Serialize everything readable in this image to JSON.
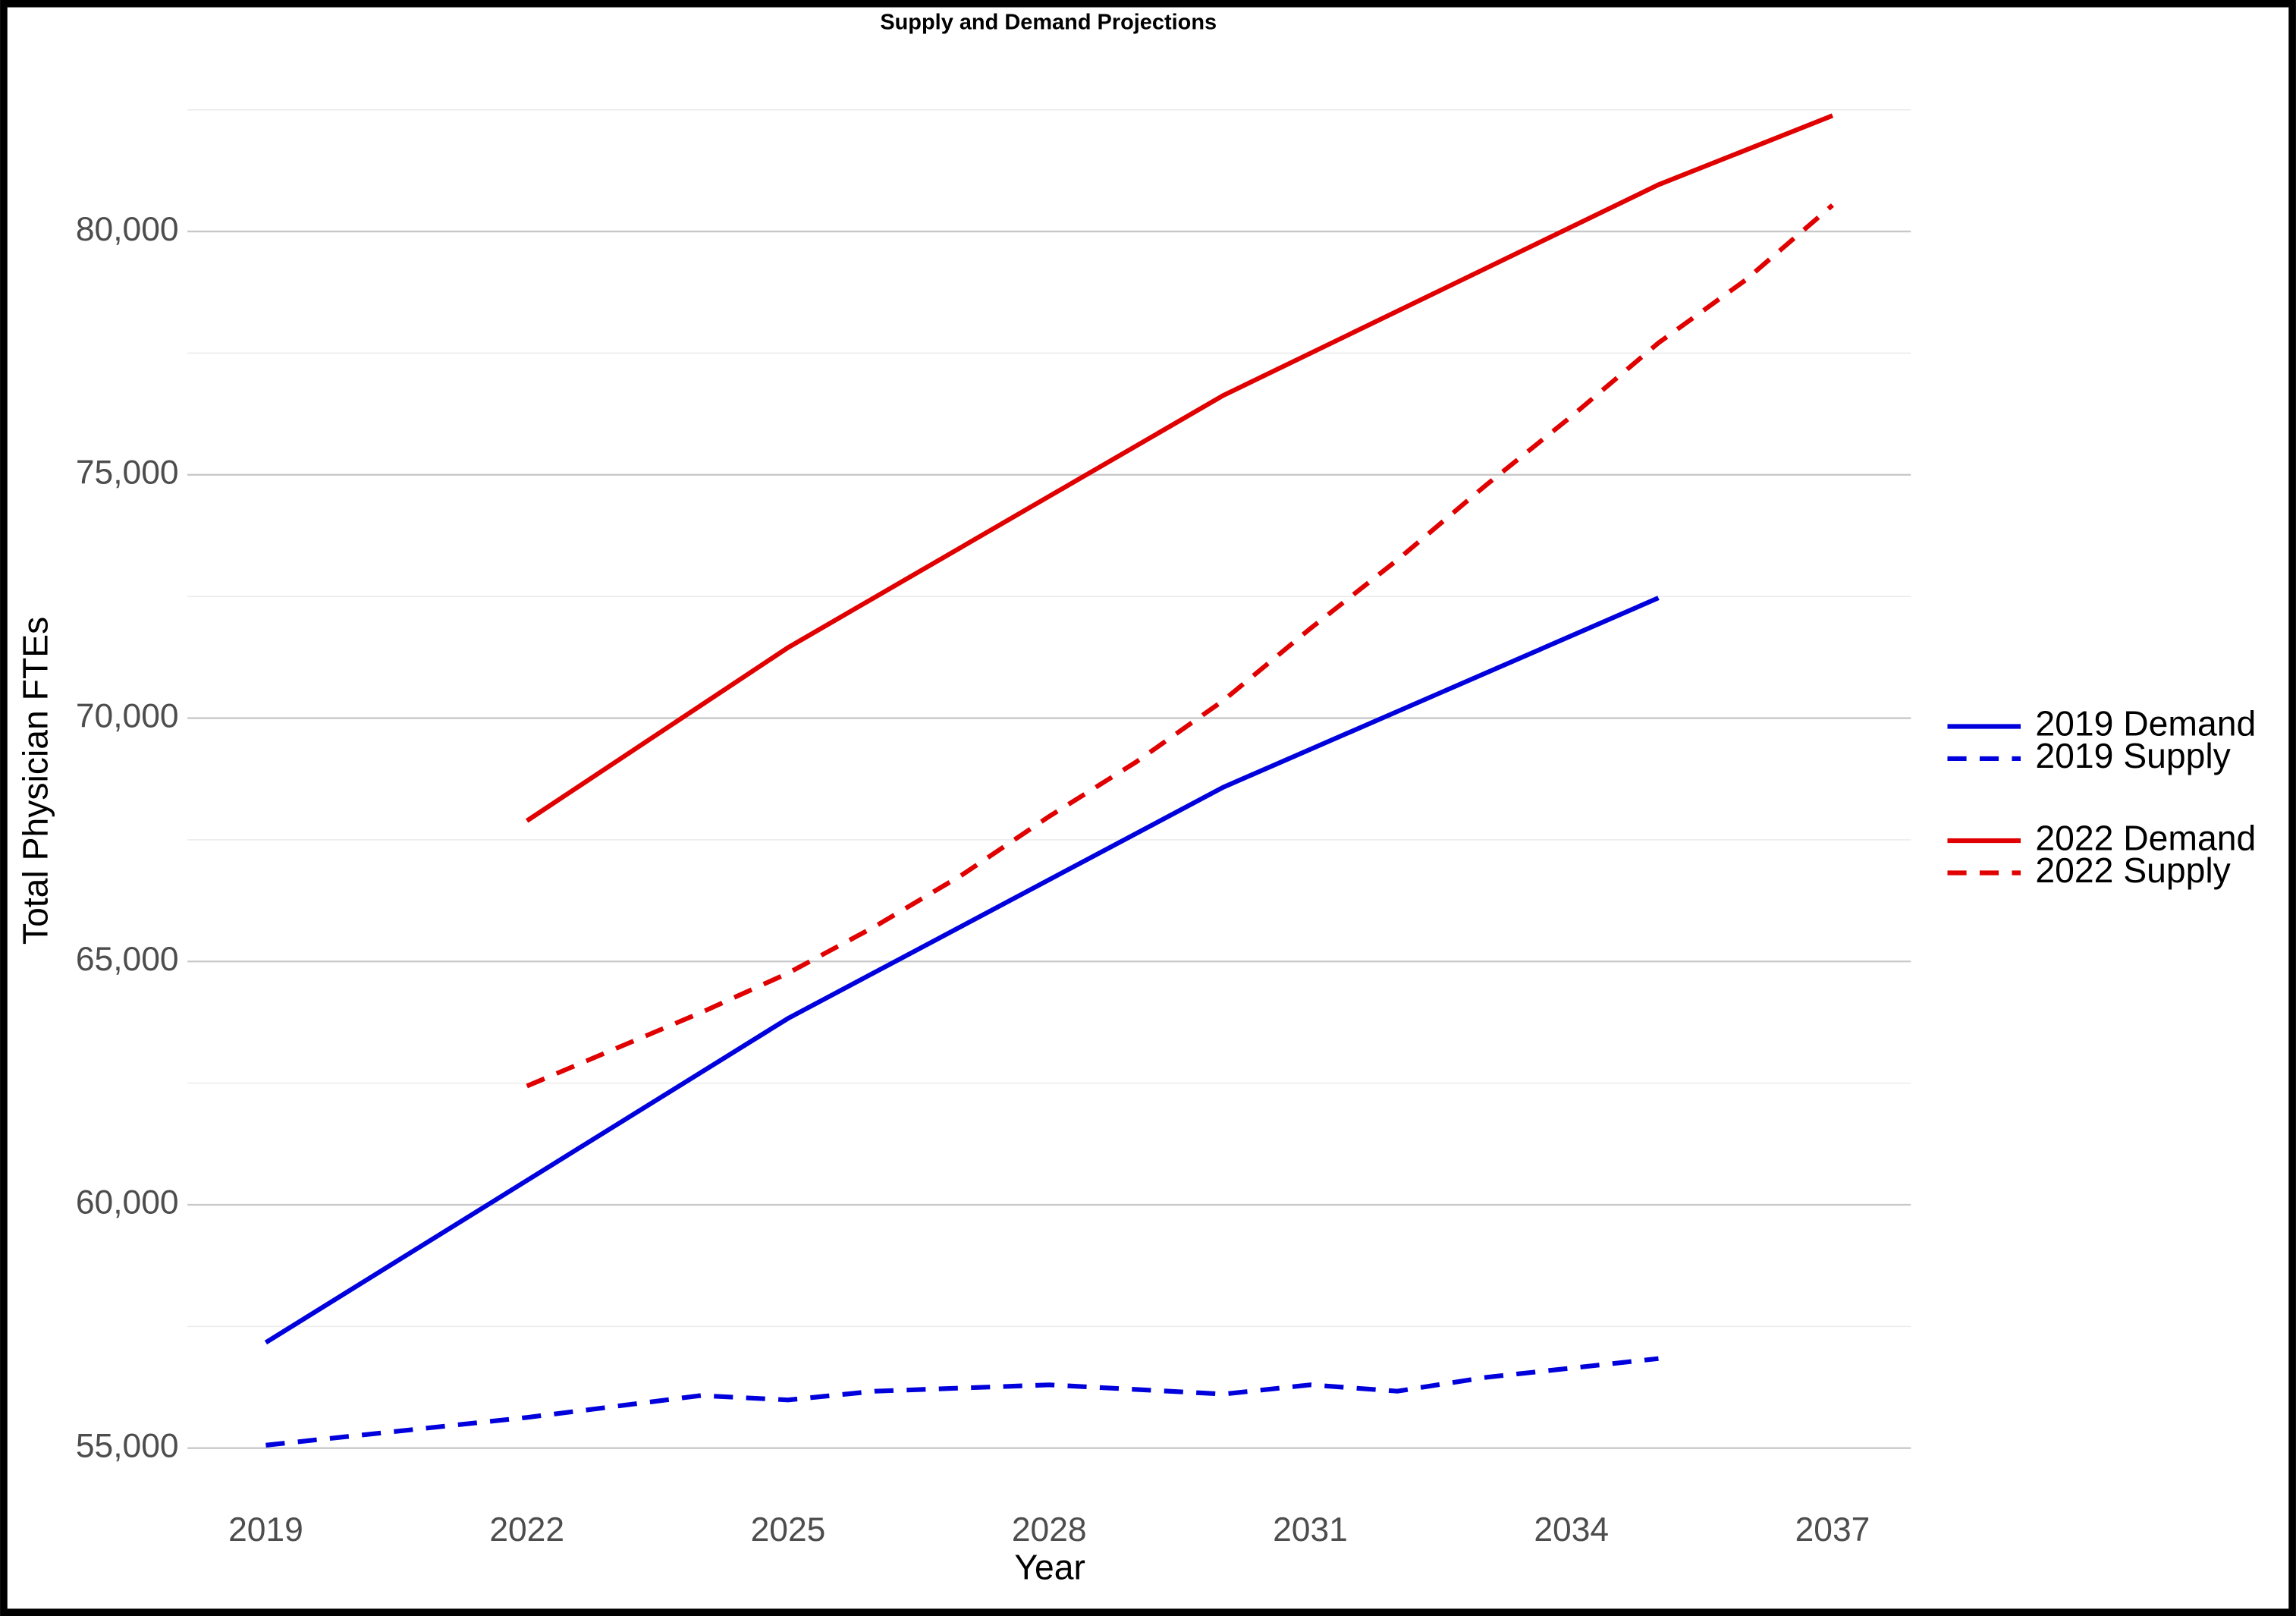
{
  "chart_data": {
    "type": "line",
    "title": "Supply and Demand Projections",
    "x_label": "Year",
    "y_label": "Total Physician FTEs",
    "xlim": [
      2018.1,
      2037.9
    ],
    "xticks": [
      2019,
      2022,
      2025,
      2028,
      2031,
      2034,
      2037
    ],
    "ylim": [
      54000,
      82800
    ],
    "yticks": [
      {
        "value": 55000,
        "label": "55,000"
      },
      {
        "value": 60000,
        "label": "60,000"
      },
      {
        "value": 65000,
        "label": "65,000"
      },
      {
        "value": 70000,
        "label": "70,000"
      },
      {
        "value": 75000,
        "label": "75,000"
      },
      {
        "value": 80000,
        "label": "80,000"
      }
    ],
    "minor_yticks": [
      57500,
      62500,
      67500,
      72500,
      77500,
      82500
    ],
    "grid": true,
    "legend": "right",
    "series": [
      {
        "name": "2019 Demand",
        "color": "#0000dd",
        "dash": false,
        "x": [
          2019,
          2025,
          2030,
          2035
        ],
        "values": [
          57170,
          63830,
          68580,
          72470
        ]
      },
      {
        "name": "2019 Supply",
        "color": "#0000dd",
        "dash": true,
        "x": [
          2019,
          2022,
          2024,
          2025,
          2026,
          2028,
          2030,
          2031,
          2032,
          2033,
          2035
        ],
        "values": [
          55060,
          55630,
          56080,
          55990,
          56170,
          56300,
          56110,
          56300,
          56170,
          56450,
          56840
        ]
      },
      {
        "name": "2022 Demand",
        "color": "#e00000",
        "dash": false,
        "x": [
          2022,
          2025,
          2030,
          2035,
          2037
        ],
        "values": [
          67890,
          71450,
          76630,
          80960,
          82380
        ]
      },
      {
        "name": "2022 Supply",
        "color": "#e00000",
        "dash": true,
        "x": [
          2022,
          2024,
          2025,
          2026,
          2027,
          2028,
          2029,
          2030,
          2031,
          2032,
          2033,
          2034,
          2035,
          2036,
          2037
        ],
        "values": [
          62440,
          63950,
          64760,
          65720,
          66780,
          67980,
          69100,
          70360,
          71840,
          73250,
          74760,
          76200,
          77710,
          79000,
          80540
        ]
      }
    ]
  }
}
